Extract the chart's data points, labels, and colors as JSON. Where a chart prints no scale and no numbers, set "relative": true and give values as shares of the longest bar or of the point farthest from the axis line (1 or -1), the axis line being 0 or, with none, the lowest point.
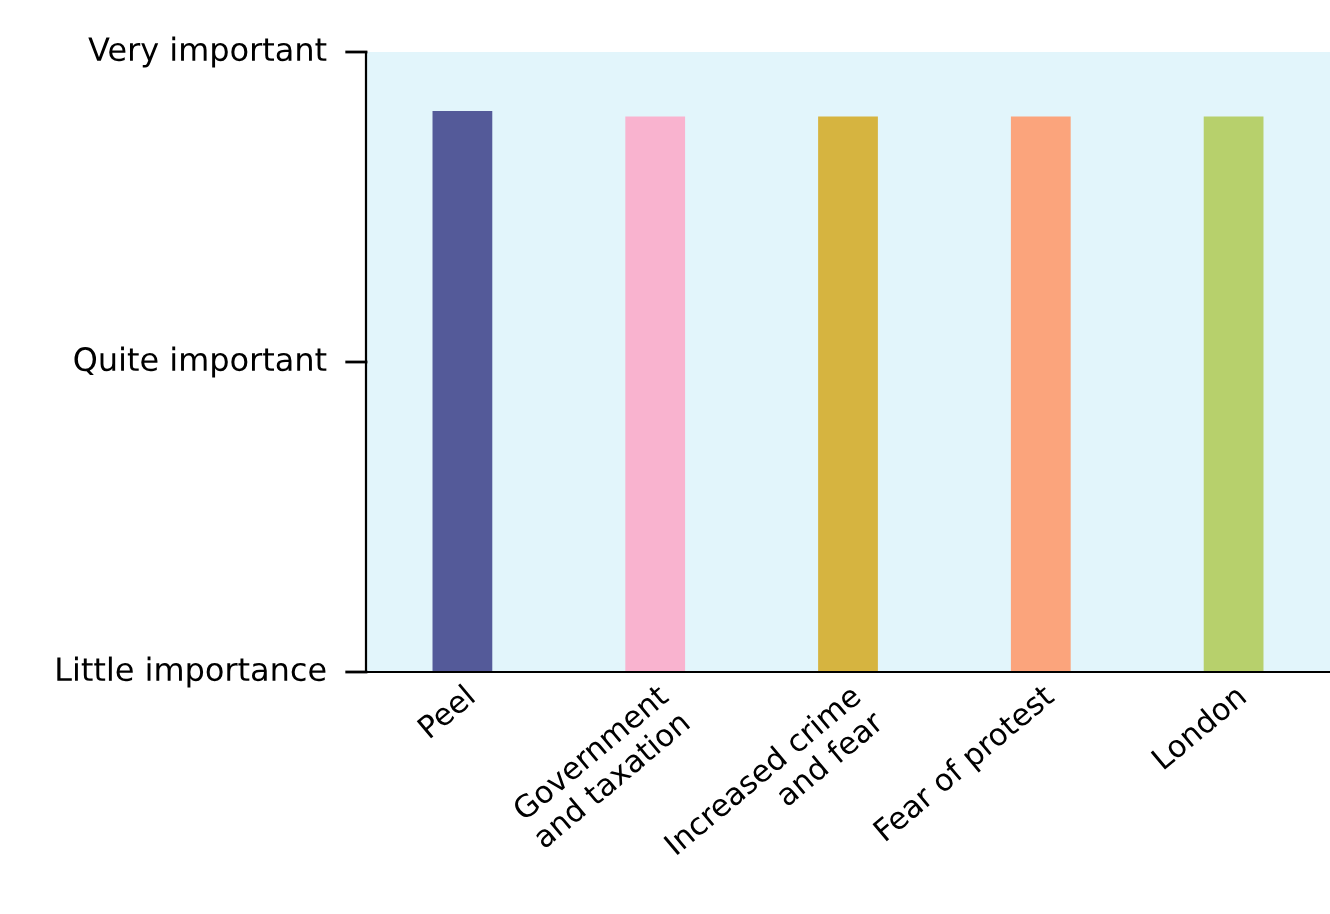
{
  "chart_data": {
    "type": "bar",
    "categories": [
      "Peel",
      "Government\nand taxation",
      "Increased crime\nand fear",
      "Fear of protest",
      "London"
    ],
    "values": [
      1,
      0.99,
      0.99,
      0.99,
      0.99
    ],
    "colors": [
      "#545a99",
      "#f9b3cf",
      "#d6b440",
      "#fba47c",
      "#b7d06c"
    ],
    "relative": true,
    "annotations": [
      "Little importance",
      "Quite important",
      "Very important"
    ],
    "grid": false,
    "legend": false
  }
}
